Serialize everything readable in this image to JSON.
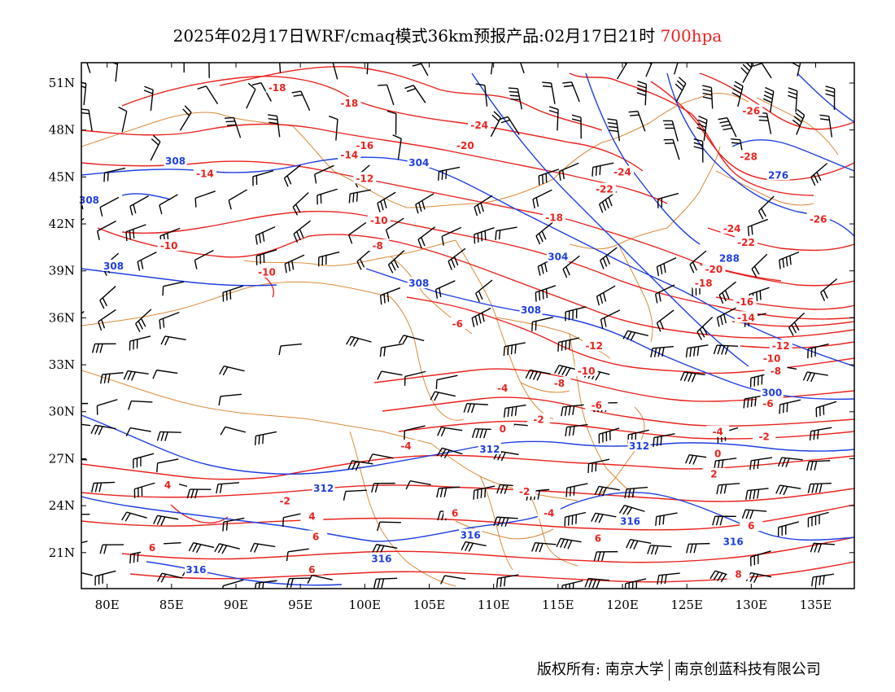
{
  "title": {
    "text": "2025年02月17日WRF/cmaq模式36km预报产品:02月17日21时",
    "level": "700hpa",
    "level_color": "#e8231f"
  },
  "axes": {
    "lat_labels": [
      "51N",
      "48N",
      "45N",
      "42N",
      "39N",
      "36N",
      "33N",
      "30N",
      "27N",
      "24N",
      "21N"
    ],
    "lon_labels": [
      "80E",
      "85E",
      "90E",
      "95E",
      "100E",
      "105E",
      "110E",
      "115E",
      "120E",
      "125E",
      "130E",
      "135E"
    ]
  },
  "colors": {
    "temperature": "#e8231f",
    "height": "#1f3fe0",
    "border": "#d98a3a",
    "barb": "#000000"
  },
  "contour_labels": [
    {
      "t": "-18",
      "lon": 93.2,
      "lat": 50.7,
      "c": "t"
    },
    {
      "t": "-18",
      "lon": 98.8,
      "lat": 49.7,
      "c": "t"
    },
    {
      "t": "-24",
      "lon": 108.9,
      "lat": 48.3,
      "c": "t"
    },
    {
      "t": "-20",
      "lon": 107.8,
      "lat": 47.0,
      "c": "t"
    },
    {
      "t": "-16",
      "lon": 100.0,
      "lat": 47.0,
      "c": "t"
    },
    {
      "t": "-14",
      "lon": 98.8,
      "lat": 46.4,
      "c": "t"
    },
    {
      "t": "-14",
      "lon": 87.6,
      "lat": 45.2,
      "c": "t"
    },
    {
      "t": "-12",
      "lon": 100.0,
      "lat": 44.9,
      "c": "t"
    },
    {
      "t": "-10",
      "lon": 101.1,
      "lat": 42.2,
      "c": "t"
    },
    {
      "t": "-10",
      "lon": 84.8,
      "lat": 40.6,
      "c": "t"
    },
    {
      "t": "-8",
      "lon": 101.0,
      "lat": 40.6,
      "c": "t"
    },
    {
      "t": "-10",
      "lon": 92.4,
      "lat": 38.9,
      "c": "t"
    },
    {
      "t": "-6",
      "lon": 107.2,
      "lat": 35.6,
      "c": "t"
    },
    {
      "t": "-4",
      "lon": 110.7,
      "lat": 31.5,
      "c": "t"
    },
    {
      "t": "-2",
      "lon": 113.5,
      "lat": 29.5,
      "c": "t"
    },
    {
      "t": "0",
      "lon": 110.7,
      "lat": 28.9,
      "c": "t"
    },
    {
      "t": "-4",
      "lon": 103.2,
      "lat": 27.8,
      "c": "t"
    },
    {
      "t": "-2",
      "lon": 93.8,
      "lat": 24.3,
      "c": "t"
    },
    {
      "t": "4",
      "lon": 84.7,
      "lat": 25.3,
      "c": "t"
    },
    {
      "t": "4",
      "lon": 95.9,
      "lat": 23.3,
      "c": "t"
    },
    {
      "t": "-2",
      "lon": 112.4,
      "lat": 24.9,
      "c": "t"
    },
    {
      "t": "-4",
      "lon": 114.3,
      "lat": 23.5,
      "c": "t"
    },
    {
      "t": "6",
      "lon": 107.0,
      "lat": 23.5,
      "c": "t"
    },
    {
      "t": "6",
      "lon": 96.2,
      "lat": 22.0,
      "c": "t"
    },
    {
      "t": "6",
      "lon": 83.5,
      "lat": 21.3,
      "c": "t"
    },
    {
      "t": "6",
      "lon": 95.9,
      "lat": 19.9,
      "c": "t"
    },
    {
      "t": "6",
      "lon": 118.1,
      "lat": 21.9,
      "c": "t"
    },
    {
      "t": "-12",
      "lon": 117.8,
      "lat": 34.2,
      "c": "t"
    },
    {
      "t": "-10",
      "lon": 117.2,
      "lat": 32.6,
      "c": "t"
    },
    {
      "t": "-8",
      "lon": 115.1,
      "lat": 31.8,
      "c": "t"
    },
    {
      "t": "-6",
      "lon": 118.0,
      "lat": 30.4,
      "c": "t"
    },
    {
      "t": "-18",
      "lon": 114.7,
      "lat": 42.4,
      "c": "t"
    },
    {
      "t": "-22",
      "lon": 118.6,
      "lat": 44.2,
      "c": "t"
    },
    {
      "t": "-24",
      "lon": 120.0,
      "lat": 45.3,
      "c": "t"
    },
    {
      "t": "-26",
      "lon": 130.0,
      "lat": 49.2,
      "c": "t"
    },
    {
      "t": "-28",
      "lon": 129.8,
      "lat": 46.3,
      "c": "t"
    },
    {
      "t": "-24",
      "lon": 128.5,
      "lat": 41.7,
      "c": "t"
    },
    {
      "t": "-22",
      "lon": 129.6,
      "lat": 40.8,
      "c": "t"
    },
    {
      "t": "-26",
      "lon": 135.2,
      "lat": 42.3,
      "c": "t"
    },
    {
      "t": "-20",
      "lon": 127.1,
      "lat": 39.1,
      "c": "t"
    },
    {
      "t": "-18",
      "lon": 126.3,
      "lat": 38.2,
      "c": "t"
    },
    {
      "t": "-16",
      "lon": 129.5,
      "lat": 37.0,
      "c": "t"
    },
    {
      "t": "-14",
      "lon": 129.6,
      "lat": 36.0,
      "c": "t"
    },
    {
      "t": "-12",
      "lon": 132.3,
      "lat": 34.2,
      "c": "t"
    },
    {
      "t": "-10",
      "lon": 131.6,
      "lat": 33.4,
      "c": "t"
    },
    {
      "t": "-8",
      "lon": 131.9,
      "lat": 32.6,
      "c": "t"
    },
    {
      "t": "-6",
      "lon": 131.3,
      "lat": 30.5,
      "c": "t"
    },
    {
      "t": "-4",
      "lon": 127.4,
      "lat": 28.7,
      "c": "t"
    },
    {
      "t": "-2",
      "lon": 131.0,
      "lat": 28.4,
      "c": "t"
    },
    {
      "t": "0",
      "lon": 127.4,
      "lat": 27.3,
      "c": "t"
    },
    {
      "t": "2",
      "lon": 127.1,
      "lat": 26.0,
      "c": "t"
    },
    {
      "t": "6",
      "lon": 130.0,
      "lat": 22.7,
      "c": "t"
    },
    {
      "t": "8",
      "lon": 129.0,
      "lat": 19.6,
      "c": "t"
    },
    {
      "t": "308",
      "lon": 85.3,
      "lat": 46.0,
      "c": "h"
    },
    {
      "t": "308",
      "lon": 78.6,
      "lat": 43.5,
      "c": "h"
    },
    {
      "t": "308",
      "lon": 80.5,
      "lat": 39.3,
      "c": "h"
    },
    {
      "t": "304",
      "lon": 104.2,
      "lat": 45.9,
      "c": "h"
    },
    {
      "t": "304",
      "lon": 115.0,
      "lat": 39.9,
      "c": "h"
    },
    {
      "t": "308",
      "lon": 104.2,
      "lat": 38.2,
      "c": "h"
    },
    {
      "t": "308",
      "lon": 112.9,
      "lat": 36.5,
      "c": "h"
    },
    {
      "t": "276",
      "lon": 132.1,
      "lat": 45.1,
      "c": "h"
    },
    {
      "t": "288",
      "lon": 128.3,
      "lat": 39.8,
      "c": "h"
    },
    {
      "t": "300",
      "lon": 131.6,
      "lat": 31.2,
      "c": "h"
    },
    {
      "t": "312",
      "lon": 109.7,
      "lat": 27.6,
      "c": "h"
    },
    {
      "t": "312",
      "lon": 121.3,
      "lat": 27.8,
      "c": "h"
    },
    {
      "t": "312",
      "lon": 96.8,
      "lat": 25.1,
      "c": "h"
    },
    {
      "t": "316",
      "lon": 120.6,
      "lat": 23.0,
      "c": "h"
    },
    {
      "t": "316",
      "lon": 108.2,
      "lat": 22.1,
      "c": "h"
    },
    {
      "t": "316",
      "lon": 101.3,
      "lat": 20.6,
      "c": "h"
    },
    {
      "t": "316",
      "lon": 128.6,
      "lat": 21.7,
      "c": "h"
    },
    {
      "t": "316",
      "lon": 86.9,
      "lat": 19.9,
      "c": "h"
    }
  ],
  "footer": {
    "left": "版权所有: 南京大学",
    "right": "南京创蓝科技有限公司"
  }
}
